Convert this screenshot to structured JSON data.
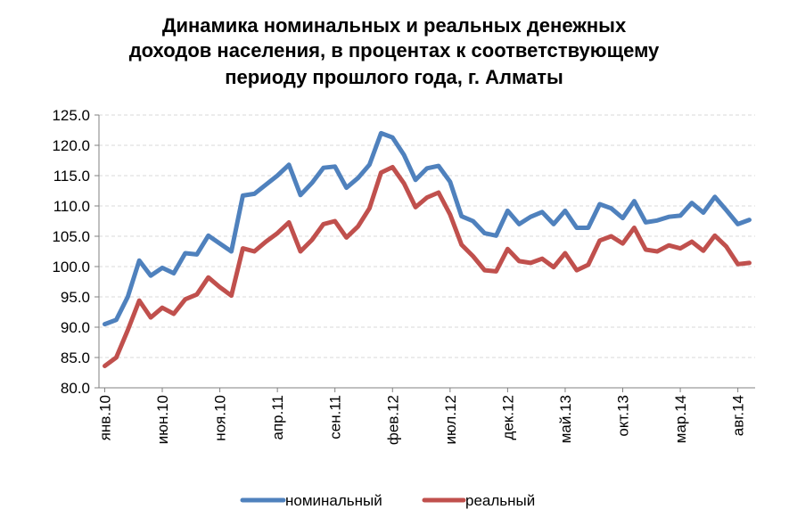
{
  "chart_data": {
    "type": "line",
    "title_lines": [
      "Динамика номинальных и реальных денежных",
      "доходов населения, в процентах к соответствующему",
      "периоду прошлого года, г. Алматы"
    ],
    "xlabel": "",
    "ylabel": "",
    "ylim": [
      80.0,
      125.0
    ],
    "yticks": [
      "80.0",
      "85.0",
      "90.0",
      "95.0",
      "100.0",
      "105.0",
      "110.0",
      "115.0",
      "120.0",
      "125.0"
    ],
    "ytick_values": [
      80,
      85,
      90,
      95,
      100,
      105,
      110,
      115,
      120,
      125
    ],
    "grid": "horizontal dashed",
    "legend_position": "bottom",
    "categories": [
      "янв.10",
      "фев.10",
      "мар.10",
      "апр.10",
      "май.10",
      "июн.10",
      "июл.10",
      "авг.10",
      "сен.10",
      "окт.10",
      "ноя.10",
      "дек.10",
      "янв.11",
      "фев.11",
      "мар.11",
      "апр.11",
      "май.11",
      "июн.11",
      "июл.11",
      "авг.11",
      "сен.11",
      "окт.11",
      "ноя.11",
      "дек.11",
      "янв.12",
      "фев.12",
      "мар.12",
      "апр.12",
      "май.12",
      "июн.12",
      "июл.12",
      "авг.12",
      "сен.12",
      "окт.12",
      "ноя.12",
      "дек.12",
      "янв.13",
      "фев.13",
      "мар.13",
      "апр.13",
      "май.13",
      "июн.13",
      "июл.13",
      "авг.13",
      "сен.13",
      "окт.13",
      "ноя.13",
      "дек.13",
      "янв.14",
      "фев.14",
      "мар.14",
      "апр.14",
      "май.14",
      "июн.14",
      "июл.14",
      "авг.14",
      "сен.14"
    ],
    "tick_labels": [
      {
        "index": 0,
        "label": "янв.10"
      },
      {
        "index": 5,
        "label": "июн.10"
      },
      {
        "index": 10,
        "label": "ноя.10"
      },
      {
        "index": 15,
        "label": "апр.11"
      },
      {
        "index": 20,
        "label": "сен.11"
      },
      {
        "index": 25,
        "label": "фев.12"
      },
      {
        "index": 30,
        "label": "июл.12"
      },
      {
        "index": 35,
        "label": "дек.12"
      },
      {
        "index": 40,
        "label": "май.13"
      },
      {
        "index": 45,
        "label": "окт.13"
      },
      {
        "index": 50,
        "label": "мар.14"
      },
      {
        "index": 55,
        "label": "авг.14"
      }
    ],
    "series": [
      {
        "name": "номинальный",
        "color": "#4F81BD",
        "values": [
          90.5,
          91.2,
          95.0,
          101.0,
          98.5,
          99.8,
          98.9,
          102.2,
          102.0,
          105.1,
          103.8,
          102.5,
          111.7,
          112.0,
          113.5,
          115.0,
          116.8,
          111.8,
          113.8,
          116.3,
          116.5,
          113.0,
          114.6,
          116.8,
          122.0,
          121.3,
          118.4,
          114.3,
          116.2,
          116.6,
          114.0,
          108.3,
          107.5,
          105.5,
          105.1,
          109.2,
          107.0,
          108.2,
          109.0,
          107.0,
          109.2,
          106.4,
          106.4,
          110.3,
          109.6,
          108.0,
          110.8,
          107.3,
          107.6,
          108.2,
          108.4,
          110.5,
          108.9,
          111.5,
          109.3,
          107.0,
          107.7
        ]
      },
      {
        "name": "реальный",
        "color": "#C0504D",
        "values": [
          83.6,
          85.0,
          89.5,
          94.4,
          91.6,
          93.2,
          92.2,
          94.6,
          95.4,
          98.2,
          96.6,
          95.2,
          103.0,
          102.5,
          104.1,
          105.5,
          107.3,
          102.5,
          104.4,
          107.0,
          107.5,
          104.8,
          106.6,
          109.6,
          115.5,
          116.4,
          113.7,
          109.8,
          111.4,
          112.2,
          108.6,
          103.6,
          101.7,
          99.4,
          99.2,
          102.9,
          100.9,
          100.6,
          101.3,
          99.9,
          102.2,
          99.4,
          100.3,
          104.3,
          105.0,
          103.8,
          106.4,
          102.8,
          102.5,
          103.5,
          103.0,
          104.1,
          102.6,
          105.1,
          103.3,
          100.4,
          100.6
        ]
      }
    ]
  }
}
